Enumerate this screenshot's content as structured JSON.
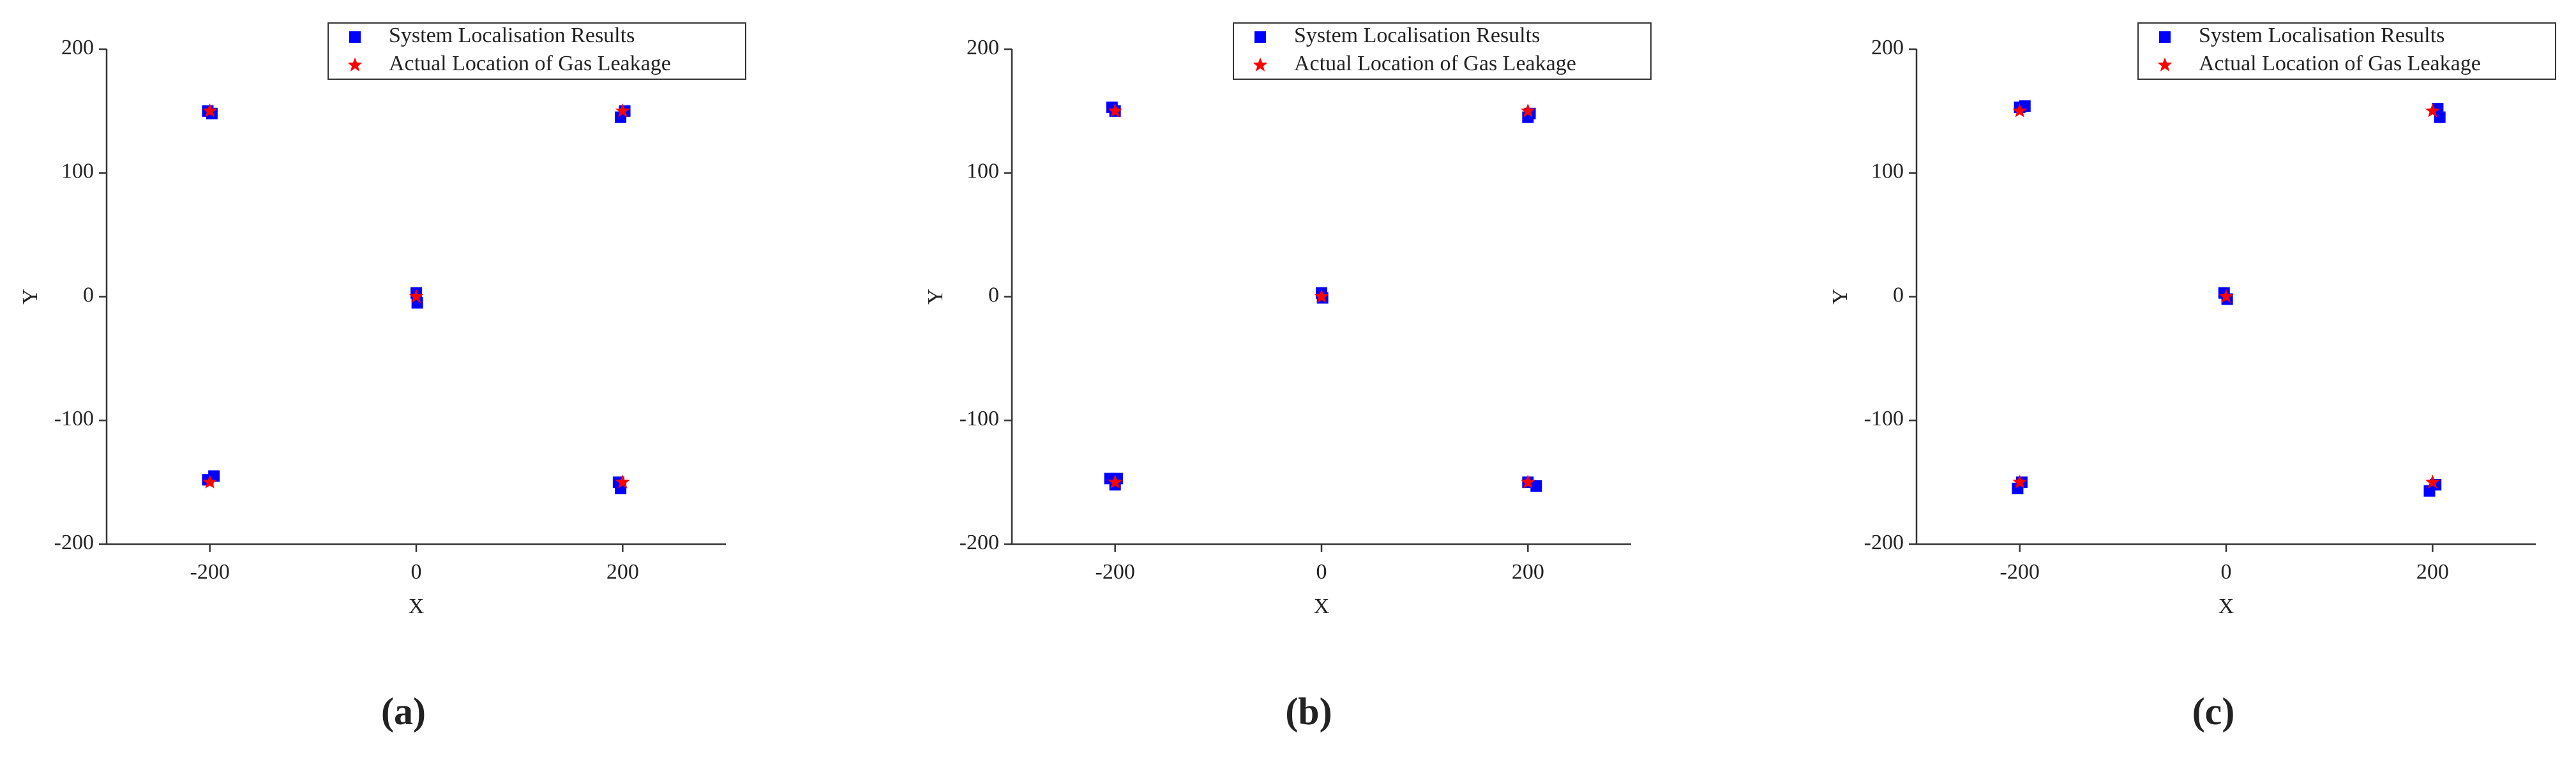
{
  "chart_data": [
    {
      "type": "scatter",
      "caption": "(a)",
      "x_label": "X",
      "y_label": "Y",
      "xlim": [
        -300,
        300
      ],
      "ylim": [
        -200,
        200
      ],
      "xticks": [
        -200,
        0,
        200
      ],
      "yticks": [
        -200,
        -100,
        0,
        100,
        200
      ],
      "legend": "upper right",
      "series": [
        {
          "name": "System Localisation Results",
          "color": "#0000ff",
          "marker": "square",
          "x": [
            -202,
            -198,
            198,
            202,
            0,
            1,
            -202,
            -196,
            196,
            198
          ],
          "values": [
            150,
            148,
            145,
            150,
            3,
            -5,
            -148,
            -145,
            -150,
            -155
          ]
        },
        {
          "name": "Actual Location of Gas Leakage",
          "color": "#ff0000",
          "marker": "star",
          "x": [
            -200,
            200,
            0,
            -200,
            200
          ],
          "values": [
            150,
            150,
            0,
            -150,
            -150
          ]
        }
      ]
    },
    {
      "type": "scatter",
      "caption": "(b)",
      "x_label": "X",
      "y_label": "Y",
      "xlim": [
        -300,
        300
      ],
      "ylim": [
        -200,
        200
      ],
      "xticks": [
        -200,
        0,
        200
      ],
      "yticks": [
        -200,
        -100,
        0,
        100,
        200
      ],
      "legend": "upper right",
      "series": [
        {
          "name": "System Localisation Results",
          "color": "#0000ff",
          "marker": "square",
          "x": [
            -203,
            -200,
            200,
            202,
            0,
            1,
            -205,
            -200,
            -198,
            200,
            208
          ],
          "values": [
            153,
            150,
            145,
            148,
            3,
            -1,
            -147,
            -152,
            -147,
            -150,
            -153
          ]
        },
        {
          "name": "Actual Location of Gas Leakage",
          "color": "#ff0000",
          "marker": "star",
          "x": [
            -200,
            200,
            0,
            -200,
            200
          ],
          "values": [
            150,
            150,
            0,
            -150,
            -150
          ]
        }
      ]
    },
    {
      "type": "scatter",
      "caption": "(c)",
      "x_label": "X",
      "y_label": "Y",
      "xlim": [
        -300,
        300
      ],
      "ylim": [
        -200,
        200
      ],
      "xticks": [
        -200,
        0,
        200
      ],
      "yticks": [
        -200,
        -100,
        0,
        100,
        200
      ],
      "legend": "upper right",
      "series": [
        {
          "name": "System Localisation Results",
          "color": "#0000ff",
          "marker": "square",
          "x": [
            -200,
            -195,
            205,
            207,
            -2,
            1,
            -202,
            -198,
            197,
            203
          ],
          "values": [
            153,
            154,
            152,
            145,
            3,
            -2,
            -155,
            -150,
            -157,
            -152
          ]
        },
        {
          "name": "Actual Location of Gas Leakage",
          "color": "#ff0000",
          "marker": "star",
          "x": [
            -200,
            200,
            0,
            -200,
            200
          ],
          "values": [
            150,
            150,
            0,
            -150,
            -150
          ]
        }
      ]
    }
  ]
}
